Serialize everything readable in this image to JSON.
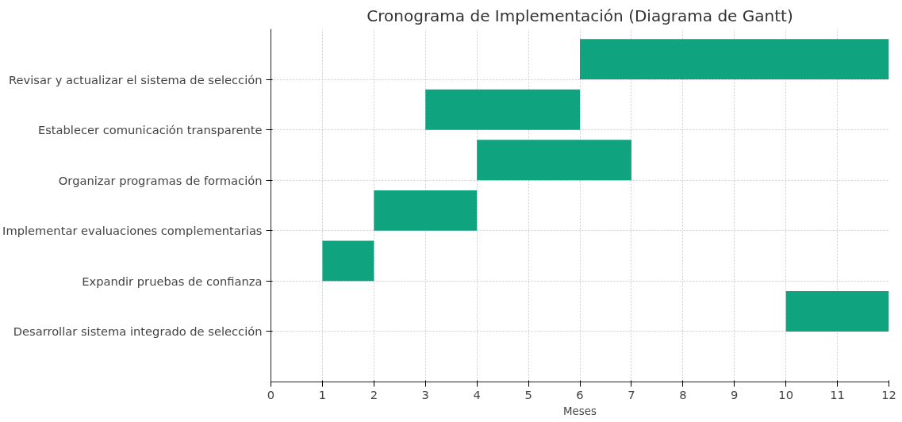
{
  "chart_data": {
    "type": "bar",
    "orientation": "horizontal",
    "title": "Cronograma de Implementación (Diagrama de Gantt)",
    "xlabel": "Meses",
    "categories": [
      "Revisar y actualizar el sistema de selección",
      "Establecer comunicación transparente",
      "Organizar programas de formación",
      "Implementar evaluaciones complementarias",
      "Expandir pruebas de confianza",
      "Desarrollar sistema integrado de selección"
    ],
    "base": [
      6,
      3,
      4,
      2,
      1,
      10
    ],
    "values": [
      6,
      3,
      3,
      2,
      1,
      2
    ],
    "color": "#10a37f",
    "xlim": [
      0,
      12
    ],
    "xticks": [
      0,
      1,
      2,
      3,
      4,
      5,
      6,
      7,
      8,
      9,
      10,
      11,
      12
    ],
    "grid": true
  }
}
